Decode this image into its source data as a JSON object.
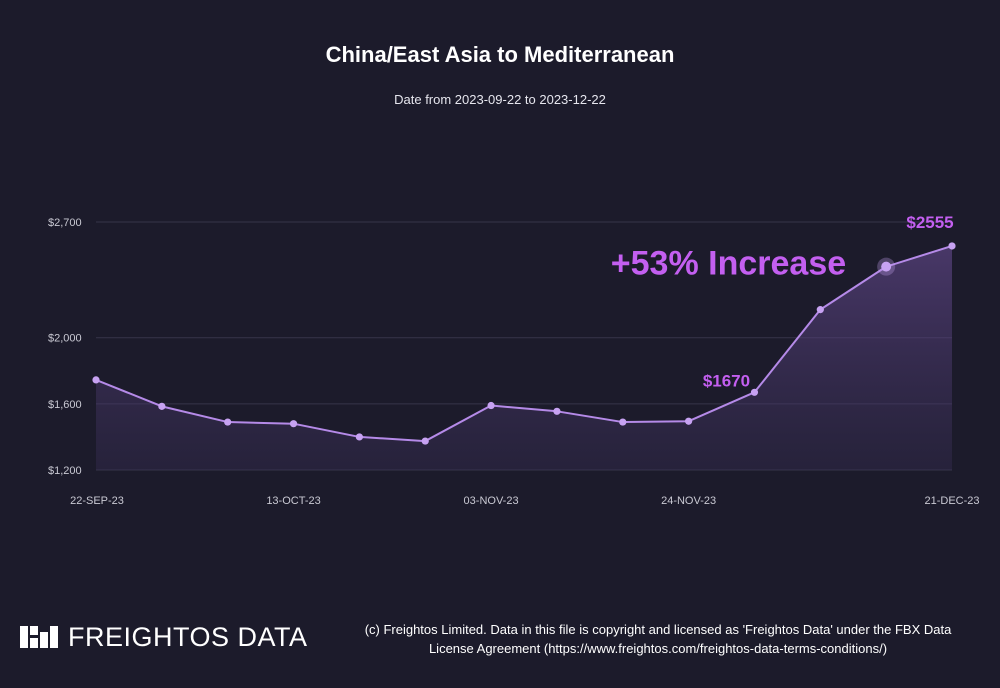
{
  "header": {
    "title": "China/East Asia to Mediterranean",
    "subtitle": "Date from 2023-09-22 to 2023-12-22"
  },
  "chart_data": {
    "type": "area",
    "title": "China/East Asia to Mediterranean",
    "subtitle": "Date from 2023-09-22 to 2023-12-22",
    "xlabel": "",
    "ylabel": "",
    "x_tick_labels": [
      "22-SEP-23",
      "13-OCT-23",
      "03-NOV-23",
      "24-NOV-23",
      "21-DEC-23"
    ],
    "x_tick_indices": [
      0,
      3,
      6,
      9,
      13
    ],
    "y_ticks": [
      1200,
      1600,
      2000,
      2700
    ],
    "y_tick_labels": [
      "$1,200",
      "$1,600",
      "$2,000",
      "$2,700"
    ],
    "ylim": [
      1200,
      2700
    ],
    "grid": true,
    "series": [
      {
        "values": [
          1745,
          1585,
          1490,
          1480,
          1400,
          1375,
          1590,
          1555,
          1490,
          1495,
          1670,
          2170,
          2430,
          2555
        ]
      }
    ],
    "annotations": [
      {
        "text": "$1670",
        "point_index": 10
      },
      {
        "text": "$2555",
        "point_index": 13
      },
      {
        "text": "+53% Increase",
        "point_index": 12
      }
    ],
    "colors": {
      "line": "#b58ae8",
      "point": "#c7a2f2",
      "annotation": "#c35ff0",
      "grid": "#36354a",
      "axis_text": "#c9c9d3"
    }
  },
  "footer": {
    "brand": "FREIGHTOS DATA",
    "note_line1": "(c) Freightos Limited. Data in this file is copyright and licensed as 'Freightos Data' under the FBX Data",
    "note_line2": "License Agreement (https://www.freightos.com/freightos-data-terms-conditions/)"
  }
}
